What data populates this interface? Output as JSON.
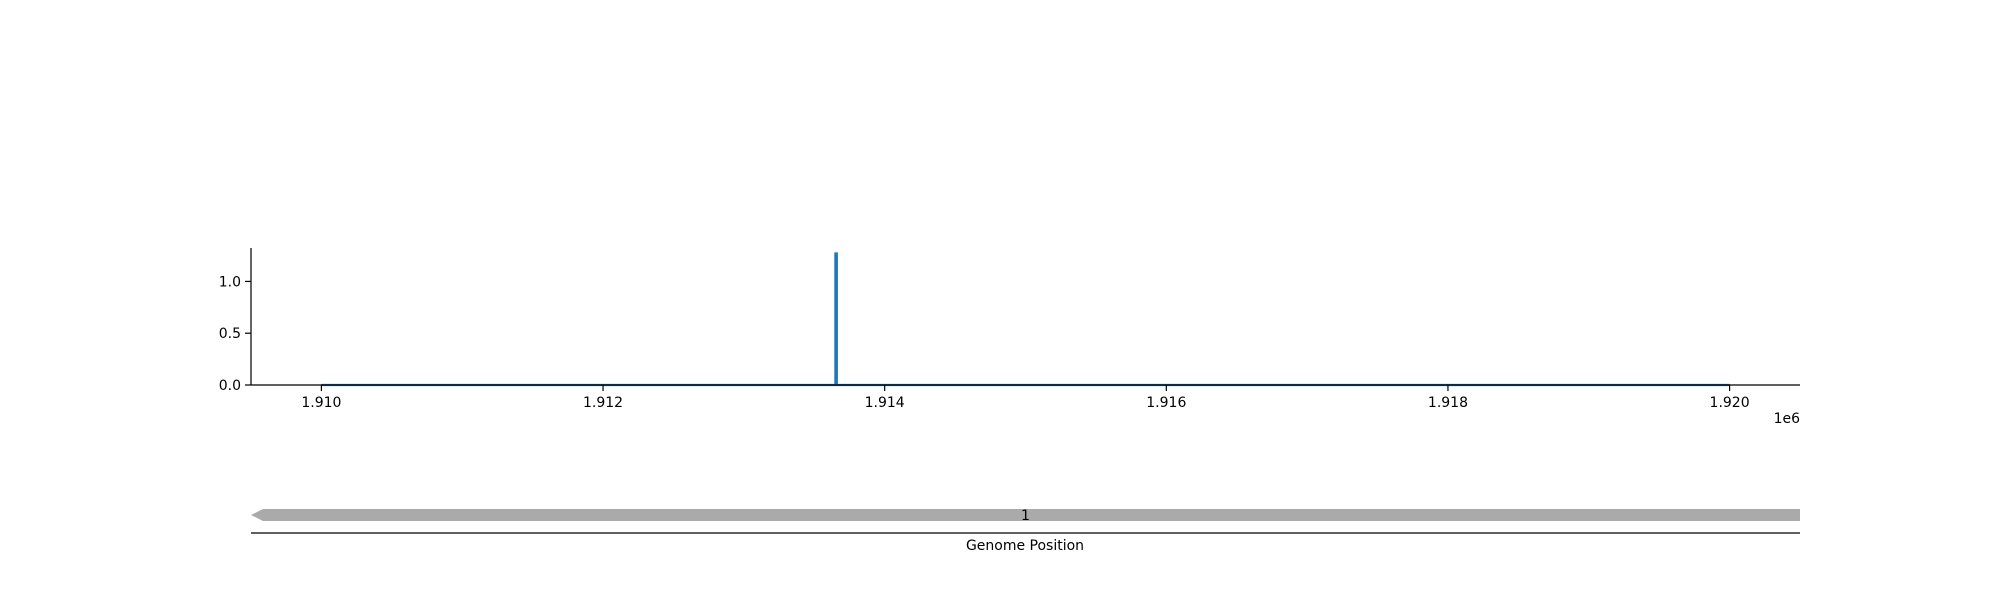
{
  "chart_data": [
    {
      "type": "line",
      "title": "",
      "xlabel": "",
      "ylabel": "",
      "x_offset_label": "1e6",
      "xlim": [
        1909500,
        1920500
      ],
      "ylim": [
        0,
        1.4
      ],
      "xticks": [
        1910000,
        1912000,
        1914000,
        1916000,
        1918000,
        1920000
      ],
      "xtick_labels": [
        "1.910",
        "1.912",
        "1.914",
        "1.916",
        "1.918",
        "1.920"
      ],
      "yticks": [
        0.0,
        0.5,
        1.0
      ],
      "ytick_labels": [
        "0.0",
        "0.5",
        "1.0"
      ],
      "grid": false,
      "series": [
        {
          "color": "#1f77b4",
          "x": [
            1910000,
            1913650,
            1913650,
            1913660,
            1913660,
            1920000
          ],
          "y": [
            0,
            0,
            1.27,
            1.27,
            0,
            0
          ]
        }
      ]
    },
    {
      "type": "gene-track",
      "xlabel": "Genome Position",
      "genes": [
        {
          "label": "1",
          "start": 1920500,
          "end": 1909500,
          "strand": "-",
          "color": "#aaaaaa"
        }
      ]
    }
  ]
}
